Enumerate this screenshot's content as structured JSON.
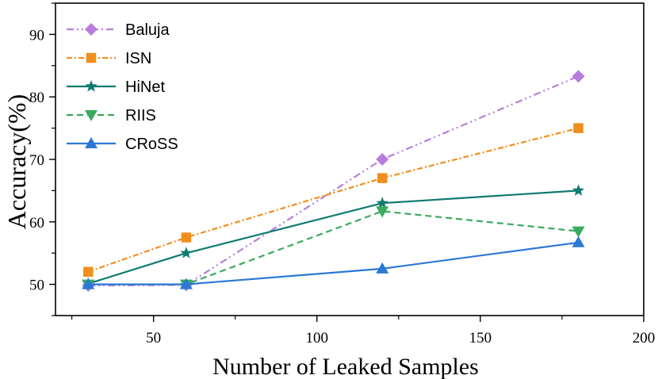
{
  "chart_data": {
    "type": "line",
    "title": "",
    "xlabel": "Number of Leaked Samples",
    "ylabel": "Accuracy(%)",
    "xlim": [
      20,
      200
    ],
    "ylim": [
      45,
      95
    ],
    "xticks": [
      50,
      100,
      150,
      200
    ],
    "xticks_minor": [
      25,
      75,
      125,
      175
    ],
    "yticks": [
      50,
      60,
      70,
      80,
      90
    ],
    "legend_position": "top-left",
    "grid": false,
    "series": [
      {
        "name": "Baluja",
        "color": "#b57edc",
        "dash": "dashdotdot",
        "marker": "diamond",
        "x": [
          30,
          60,
          120,
          180
        ],
        "y": [
          49.8,
          49.9,
          70.0,
          83.3
        ]
      },
      {
        "name": "ISN",
        "color": "#f28e1c",
        "dash": "dashdot",
        "marker": "square",
        "x": [
          30,
          60,
          120,
          180
        ],
        "y": [
          52.0,
          57.5,
          67.0,
          75.0
        ]
      },
      {
        "name": "HiNet",
        "color": "#0f7b72",
        "dash": "solid",
        "marker": "star",
        "x": [
          30,
          60,
          120,
          180
        ],
        "y": [
          50.1,
          55.0,
          63.0,
          65.0
        ]
      },
      {
        "name": "RIIS",
        "color": "#3aaa5e",
        "dash": "dashed",
        "marker": "triangle-down",
        "x": [
          30,
          60,
          120,
          180
        ],
        "y": [
          50.0,
          50.0,
          61.7,
          58.5
        ]
      },
      {
        "name": "CRoSS",
        "color": "#2b78d4",
        "dash": "solid",
        "marker": "triangle-up",
        "x": [
          30,
          60,
          120,
          180
        ],
        "y": [
          50.0,
          50.0,
          52.5,
          56.7
        ]
      }
    ]
  }
}
